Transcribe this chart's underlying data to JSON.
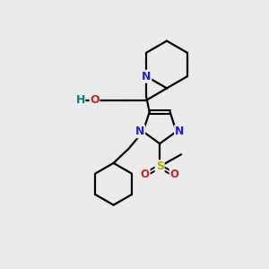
{
  "background_color": "#ebebeb",
  "atom_colors": {
    "N": "#2222cc",
    "O": "#cc2222",
    "S": "#aaaa00",
    "C": "#000000",
    "H": "#008080"
  }
}
